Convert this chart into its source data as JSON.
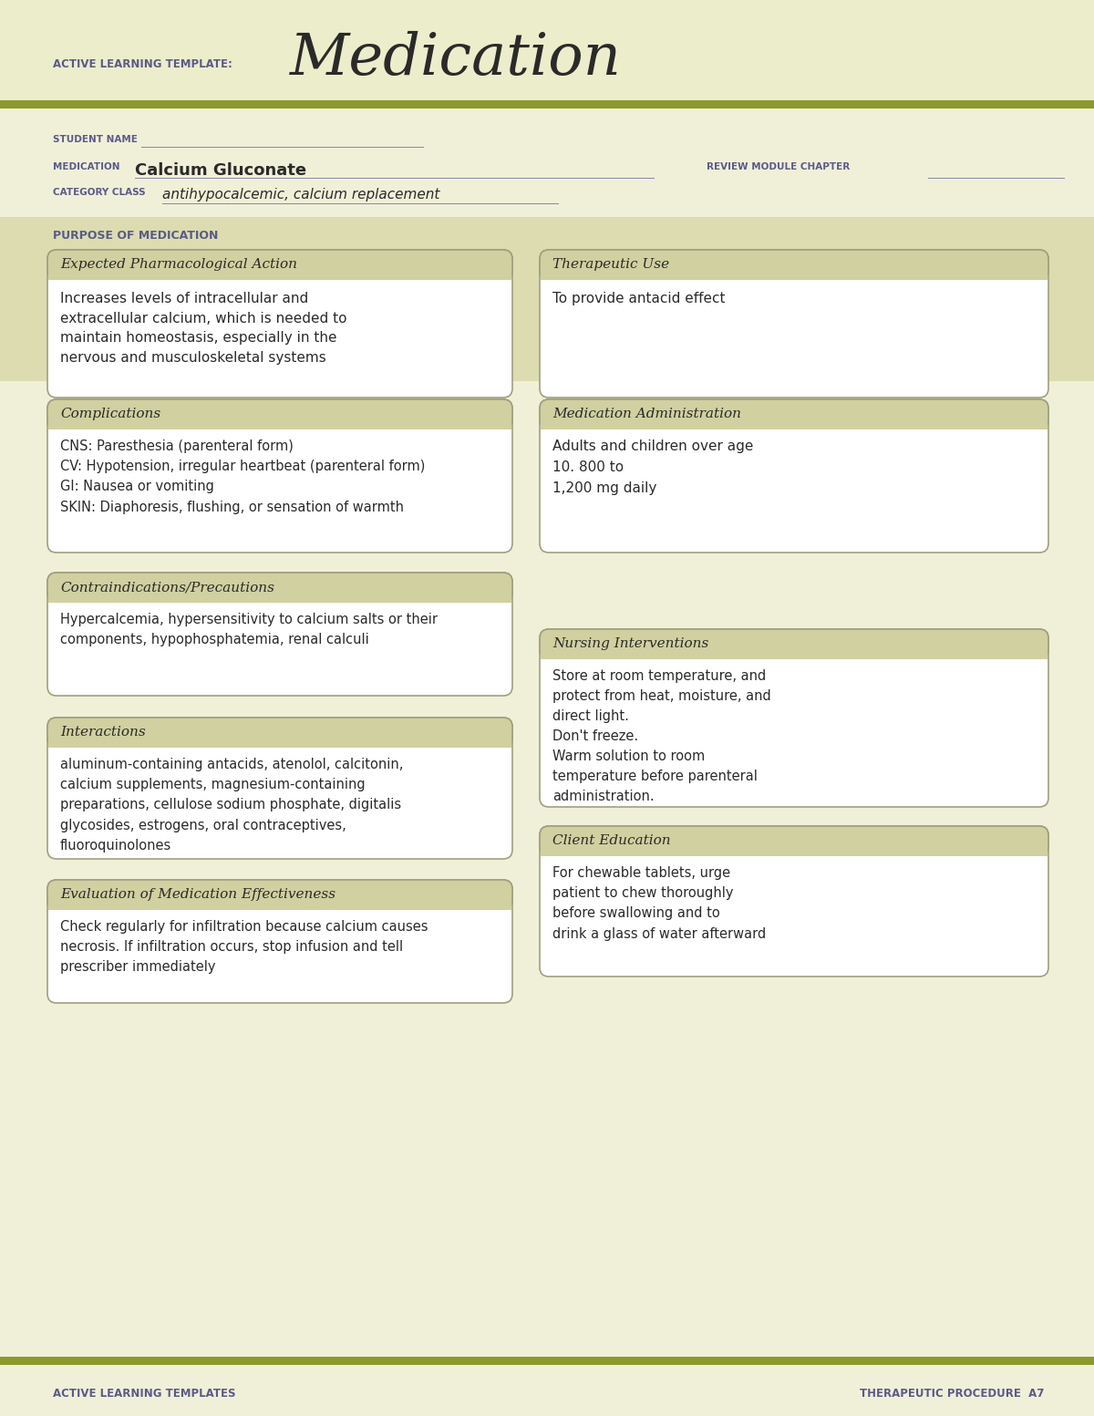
{
  "page_bg": "#f0f0d8",
  "header_bg": "#ecedca",
  "olive_stripe": "#8b9a2a",
  "box_header_bg": "#d0d0a0",
  "box_body_bg": "#ffffff",
  "box_border": "#a0a080",
  "purple_text": "#5a5a8a",
  "dark_text": "#2a2a2a",
  "section_bg": "#dcdcb0",
  "title_template": "ACTIVE LEARNING TEMPLATE:",
  "title_main": "Medication",
  "student_name_label": "STUDENT NAME",
  "medication_label": "MEDICATION",
  "medication_value": "Calcium Gluconate",
  "review_label": "REVIEW MODULE CHAPTER",
  "category_label": "CATEGORY CLASS",
  "category_value": "antihypocalcemic, calcium replacement",
  "purpose_label": "PURPOSE OF MEDICATION",
  "box1_title": "Expected Pharmacological Action",
  "box1_content": "Increases levels of intracellular and\nextracellular calcium, which is needed to\nmaintain homeostasis, especially in the\nnervous and musculoskeletal systems",
  "box2_title": "Therapeutic Use",
  "box2_content": "To provide antacid effect",
  "box3_title": "Complications",
  "box3_content": "CNS: Paresthesia (parenteral form)\nCV: Hypotension, irregular heartbeat (parenteral form)\nGI: Nausea or vomiting\nSKIN: Diaphoresis, flushing, or sensation of warmth",
  "box4_title": "Medication Administration",
  "box4_content": "Adults and children over age\n10. 800 to\n1,200 mg daily",
  "box5_title": "Contraindications/Precautions",
  "box5_content": "Hypercalcemia, hypersensitivity to calcium salts or their\ncomponents, hypophosphatemia, renal calculi",
  "box6_title": "Nursing Interventions",
  "box6_content": "Store at room temperature, and\nprotect from heat, moisture, and\ndirect light.\nDon't freeze.\nWarm solution to room\ntemperature before parenteral\nadministration.",
  "box7_title": "Interactions",
  "box7_content": "aluminum-containing antacids, atenolol, calcitonin,\ncalcium supplements, magnesium-containing\npreparations, cellulose sodium phosphate, digitalis\nglycosides, estrogens, oral contraceptives,\nfluoroquinolones",
  "box8_title": "Client Education",
  "box8_content": "For chewable tablets, urge\npatient to chew thoroughly\nbefore swallowing and to\ndrink a glass of water afterward",
  "box9_title": "Evaluation of Medication Effectiveness",
  "box9_content": "Check regularly for infiltration because calcium causes\nnecrosis. If infiltration occurs, stop infusion and tell\nprescriber immediately",
  "footer_left": "ACTIVE LEARNING TEMPLATES",
  "footer_right": "THERAPEUTIC PROCEDURE  A7"
}
